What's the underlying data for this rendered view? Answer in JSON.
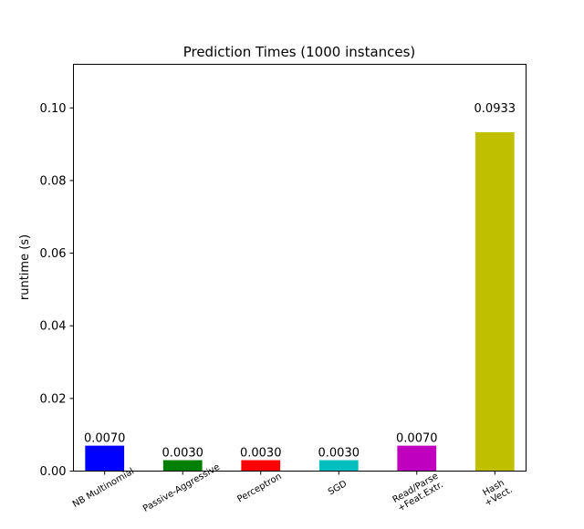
{
  "chart_data": {
    "type": "bar",
    "title": "Prediction Times (1000 instances)",
    "xlabel": "",
    "ylabel": "runtime (s)",
    "ylim": [
      0,
      0.112
    ],
    "yticks": [
      "0.00",
      "0.02",
      "0.04",
      "0.06",
      "0.08",
      "0.10"
    ],
    "categories": [
      "NB Multinomial",
      "Passive-Aggressive",
      "Perceptron",
      "SGD",
      "Read/Parse\n+Feat.Extr.",
      "Hash\n+Vect."
    ],
    "values": [
      0.007,
      0.003,
      0.003,
      0.003,
      0.007,
      0.0933
    ],
    "value_labels": [
      "0.0070",
      "0.0030",
      "0.0030",
      "0.0030",
      "0.0070",
      "0.0933"
    ],
    "colors": [
      "#0000ff",
      "#008000",
      "#ff0000",
      "#00bfbf",
      "#bf00bf",
      "#bfbf00"
    ],
    "grid": false,
    "legend": "none"
  }
}
